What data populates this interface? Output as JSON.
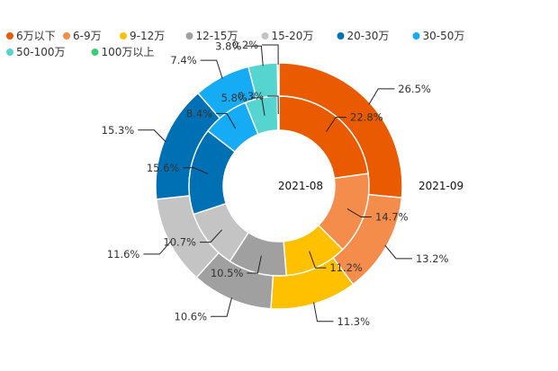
{
  "chart_data": {
    "type": "pie",
    "subtype": "double-donut",
    "legend_position": "top",
    "colors": [
      "#EA5A00",
      "#F48C4C",
      "#FFC000",
      "#A0A0A0",
      "#C4C4C4",
      "#0070B5",
      "#16ABF5",
      "#55D4D0",
      "#3ECB77"
    ],
    "categories": [
      "6万以下",
      "6-9万",
      "9-12万",
      "12-15万",
      "15-20万",
      "20-30万",
      "30-50万",
      "50-100万",
      "100万以上"
    ],
    "series": [
      {
        "name": "2021-08",
        "ring": "inner",
        "values": [
          22.8,
          14.7,
          11.2,
          10.5,
          10.7,
          15.6,
          8.4,
          5.8,
          0.3
        ],
        "labels": [
          "22.8%",
          "14.7%",
          "11.2%",
          "10.5%",
          "10.7%",
          "15.6%",
          "8.4%",
          "5.8%",
          "0.3%"
        ]
      },
      {
        "name": "2021-09",
        "ring": "outer",
        "values": [
          26.5,
          13.2,
          11.3,
          10.6,
          11.6,
          15.3,
          7.4,
          3.8,
          0.2
        ],
        "labels": [
          "26.5%",
          "13.2%",
          "11.3%",
          "10.6%",
          "11.6%",
          "15.3%",
          "7.4%",
          "3.8%",
          "0.2%"
        ]
      }
    ]
  }
}
